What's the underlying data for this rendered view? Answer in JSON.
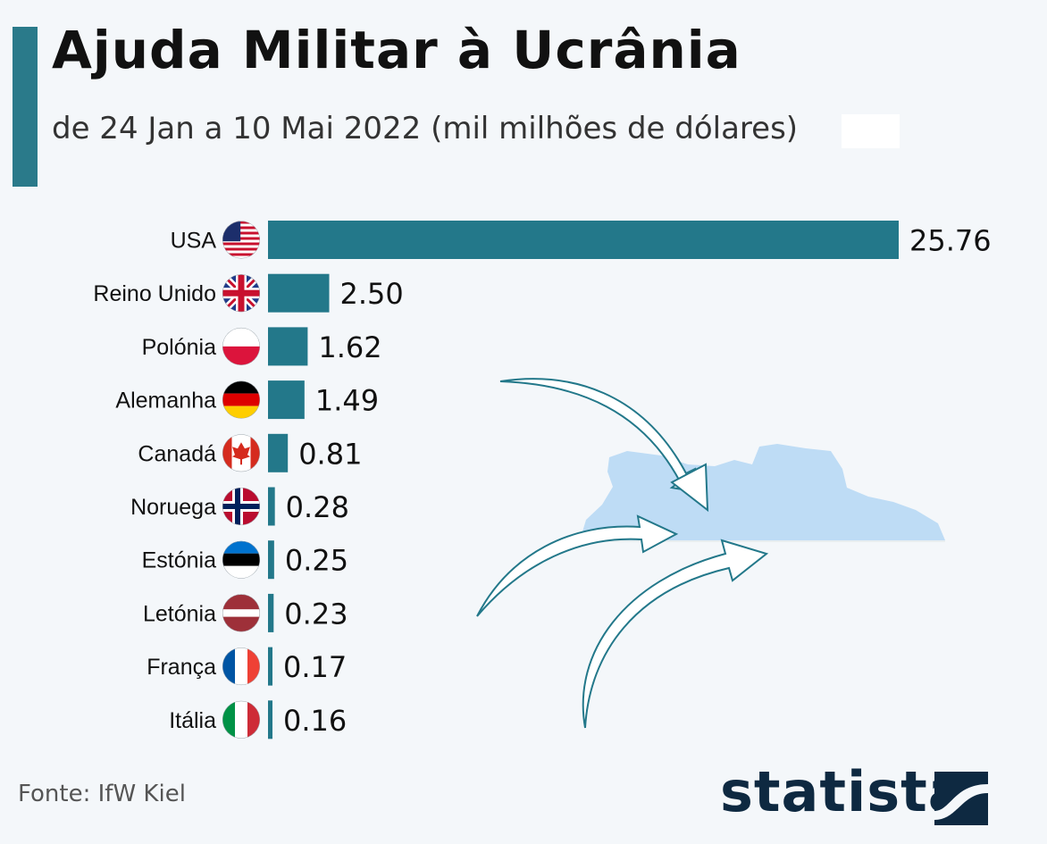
{
  "header": {
    "title": "Ajuda Militar à Ucrânia",
    "subtitle": "de 24 Jan a 10 Mai  2022  (mil milhões de dólares)"
  },
  "chart_data": {
    "type": "bar",
    "orientation": "horizontal",
    "categories": [
      "USA",
      "Reino Unido",
      "Polónia",
      "Alemanha",
      "Canadá",
      "Noruega",
      "Estónia",
      "Letónia",
      "França",
      "Itália"
    ],
    "values": [
      25.76,
      2.5,
      1.62,
      1.49,
      0.81,
      0.28,
      0.25,
      0.23,
      0.17,
      0.16
    ],
    "value_labels": [
      "25.76",
      "2.50",
      "1.62",
      "1.49",
      "0.81",
      "0.28",
      "0.25",
      "0.23",
      "0.17",
      "0.16"
    ],
    "bar_color": "#23788a",
    "flags": [
      "flag-usa-icon",
      "flag-uk-icon",
      "flag-poland-icon",
      "flag-germany-icon",
      "flag-canada-icon",
      "flag-norway-icon",
      "flag-estonia-icon",
      "flag-latvia-icon",
      "flag-france-icon",
      "flag-italy-icon"
    ],
    "xlim": [
      0,
      25.76
    ],
    "grid": false
  },
  "footer": {
    "source": "Fonte: IfW Kiel",
    "logo": "statista"
  },
  "colors": {
    "accent": "#2a7a8a",
    "ukraine_blue": "#bedcf5",
    "ukraine_yellow": "#f9efad",
    "logo": "#0e2941"
  }
}
